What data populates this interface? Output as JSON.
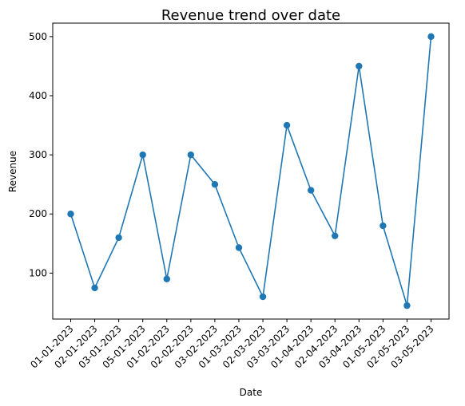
{
  "chart_data": {
    "type": "line",
    "title": "Revenue trend over date",
    "xlabel": "Date",
    "ylabel": "Revenue",
    "categories": [
      "01-01-2023",
      "02-01-2023",
      "03-01-2023",
      "05-01-2023",
      "01-02-2023",
      "02-02-2023",
      "03-02-2023",
      "01-03-2023",
      "02-03-2023",
      "03-03-2023",
      "01-04-2023",
      "02-04-2023",
      "03-04-2023",
      "01-05-2023",
      "02-05-2023",
      "03-05-2023"
    ],
    "values": [
      200,
      75,
      160,
      300,
      90,
      300,
      250,
      143,
      60,
      350,
      240,
      163,
      450,
      180,
      45,
      500
    ],
    "yticks": [
      100,
      200,
      300,
      400,
      500
    ],
    "ylim": [
      22.25,
      522.75
    ],
    "grid": false,
    "markers": true,
    "line_color": "#1f77b4"
  }
}
